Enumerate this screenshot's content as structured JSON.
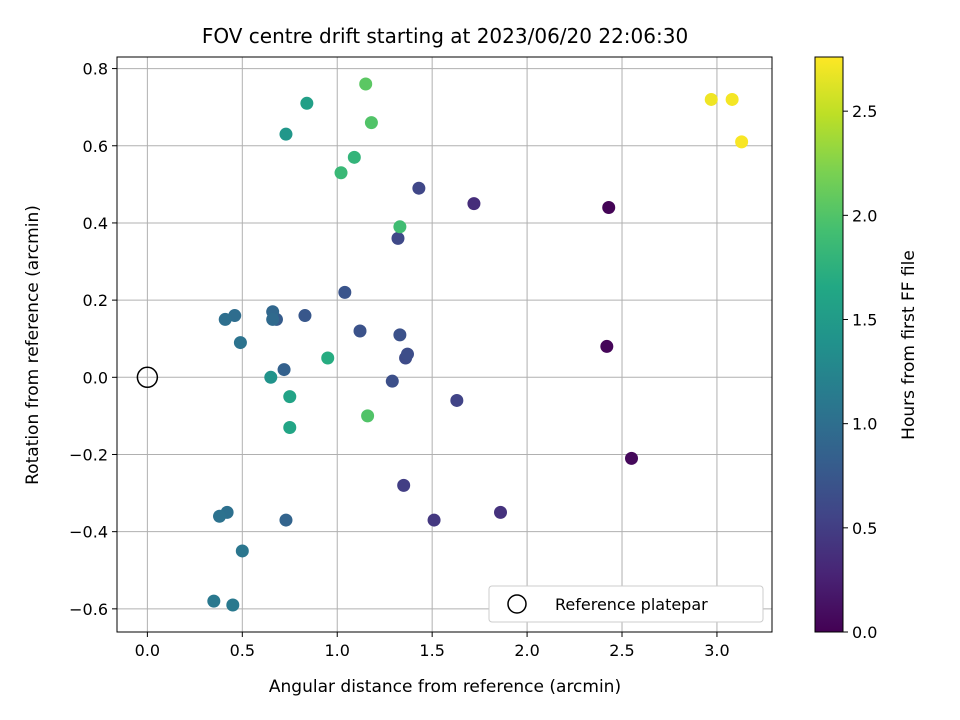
{
  "chart_data": {
    "type": "scatter",
    "title": "FOV centre drift starting at 2023/06/20 22:06:30",
    "xlabel": "Angular distance from reference (arcmin)",
    "ylabel": "Rotation from reference (arcmin)",
    "xlim": [
      -0.16,
      3.29
    ],
    "ylim": [
      -0.66,
      0.83
    ],
    "xticks": [
      "0.0",
      "0.5",
      "1.0",
      "1.5",
      "2.0",
      "2.5",
      "3.0"
    ],
    "xtick_values": [
      0,
      0.5,
      1.0,
      1.5,
      2.0,
      2.5,
      3.0
    ],
    "yticks": [
      "−0.6",
      "−0.4",
      "−0.2",
      "0.0",
      "0.2",
      "0.4",
      "0.6",
      "0.8"
    ],
    "ytick_values": [
      -0.6,
      -0.4,
      -0.2,
      0.0,
      0.2,
      0.4,
      0.6,
      0.8
    ],
    "grid": true,
    "legend": {
      "placement": "lower-right",
      "entries": [
        "Reference platepar"
      ]
    },
    "reference_point": {
      "x": 0.0,
      "y": 0.0
    },
    "colorbar": {
      "label": "Hours from first FF file",
      "colormap": "viridis",
      "range": [
        0.0,
        2.76
      ],
      "ticks": [
        "0.0",
        "0.5",
        "1.0",
        "1.5",
        "2.0",
        "2.5"
      ],
      "tick_values": [
        0.0,
        0.5,
        1.0,
        1.5,
        2.0,
        2.5
      ]
    },
    "points": [
      {
        "x": 2.43,
        "y": 0.44,
        "c": 0.02
      },
      {
        "x": 2.42,
        "y": 0.08,
        "c": 0.04
      },
      {
        "x": 2.55,
        "y": -0.21,
        "c": 0.06
      },
      {
        "x": 1.72,
        "y": 0.45,
        "c": 0.35
      },
      {
        "x": 1.86,
        "y": -0.35,
        "c": 0.4
      },
      {
        "x": 1.51,
        "y": -0.37,
        "c": 0.45
      },
      {
        "x": 1.35,
        "y": -0.28,
        "c": 0.5
      },
      {
        "x": 1.63,
        "y": -0.06,
        "c": 0.55
      },
      {
        "x": 1.43,
        "y": 0.49,
        "c": 0.58
      },
      {
        "x": 1.32,
        "y": 0.36,
        "c": 0.6
      },
      {
        "x": 1.36,
        "y": 0.05,
        "c": 0.62
      },
      {
        "x": 1.37,
        "y": 0.06,
        "c": 0.64
      },
      {
        "x": 1.29,
        "y": -0.01,
        "c": 0.66
      },
      {
        "x": 1.33,
        "y": 0.11,
        "c": 0.68
      },
      {
        "x": 1.12,
        "y": 0.12,
        "c": 0.7
      },
      {
        "x": 1.04,
        "y": 0.22,
        "c": 0.72
      },
      {
        "x": 0.83,
        "y": 0.16,
        "c": 0.75
      },
      {
        "x": 0.68,
        "y": 0.15,
        "c": 0.8
      },
      {
        "x": 0.72,
        "y": 0.02,
        "c": 0.85
      },
      {
        "x": 0.73,
        "y": -0.37,
        "c": 0.88
      },
      {
        "x": 0.66,
        "y": 0.17,
        "c": 0.92
      },
      {
        "x": 0.66,
        "y": 0.15,
        "c": 0.95
      },
      {
        "x": 0.46,
        "y": 0.16,
        "c": 0.98
      },
      {
        "x": 0.41,
        "y": 0.15,
        "c": 1.0
      },
      {
        "x": 0.49,
        "y": 0.09,
        "c": 1.05
      },
      {
        "x": 0.42,
        "y": -0.35,
        "c": 1.02
      },
      {
        "x": 0.38,
        "y": -0.36,
        "c": 1.04
      },
      {
        "x": 0.5,
        "y": -0.45,
        "c": 1.08
      },
      {
        "x": 0.35,
        "y": -0.58,
        "c": 1.1
      },
      {
        "x": 0.45,
        "y": -0.59,
        "c": 1.12
      },
      {
        "x": 0.65,
        "y": 0.0,
        "c": 1.4
      },
      {
        "x": 0.73,
        "y": 0.63,
        "c": 1.45
      },
      {
        "x": 0.84,
        "y": 0.71,
        "c": 1.55
      },
      {
        "x": 0.75,
        "y": -0.05,
        "c": 1.6
      },
      {
        "x": 0.75,
        "y": -0.13,
        "c": 1.62
      },
      {
        "x": 0.95,
        "y": 0.05,
        "c": 1.7
      },
      {
        "x": 1.09,
        "y": 0.57,
        "c": 1.8
      },
      {
        "x": 1.02,
        "y": 0.53,
        "c": 1.85
      },
      {
        "x": 1.33,
        "y": 0.39,
        "c": 1.9
      },
      {
        "x": 1.18,
        "y": 0.66,
        "c": 2.0
      },
      {
        "x": 1.15,
        "y": 0.76,
        "c": 2.05
      },
      {
        "x": 1.16,
        "y": -0.1,
        "c": 2.0
      },
      {
        "x": 2.97,
        "y": 0.72,
        "c": 2.7
      },
      {
        "x": 3.08,
        "y": 0.72,
        "c": 2.72
      },
      {
        "x": 3.13,
        "y": 0.61,
        "c": 2.74
      }
    ]
  }
}
